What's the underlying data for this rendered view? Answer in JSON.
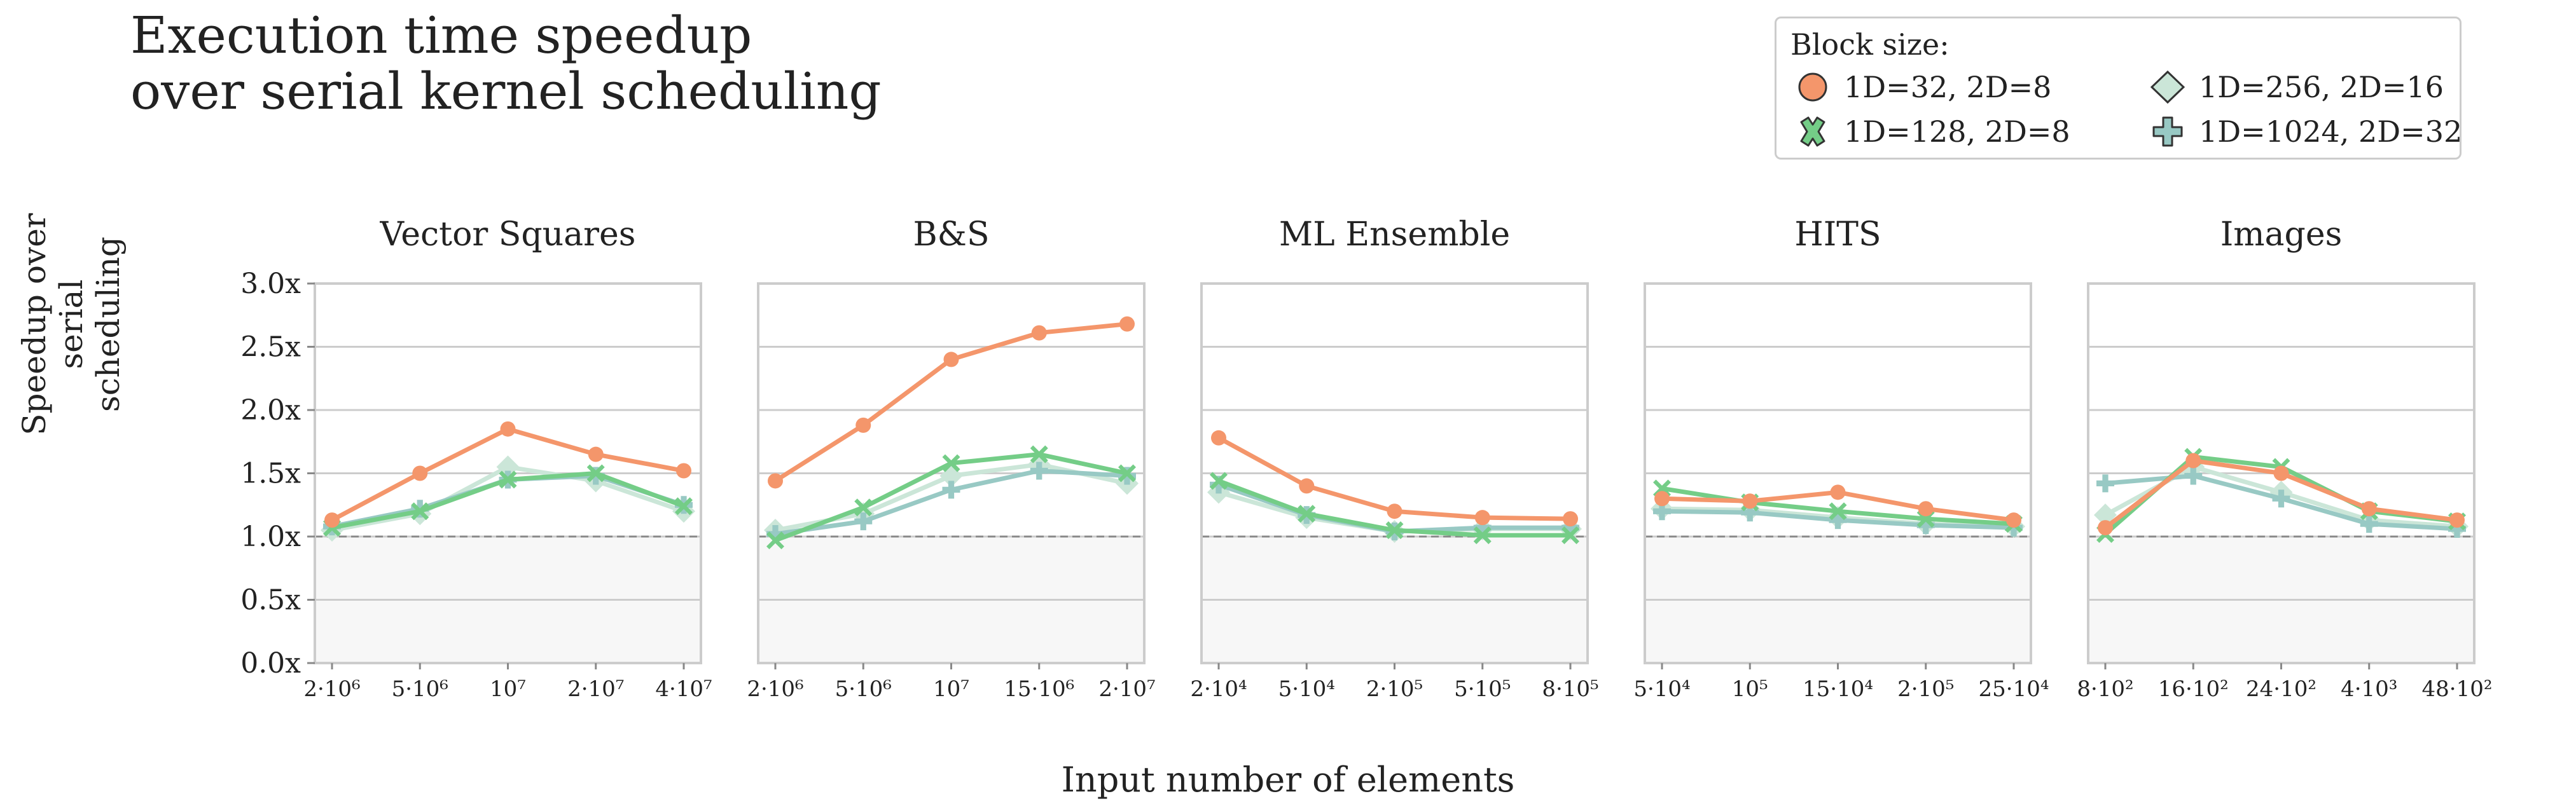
{
  "figure": {
    "title_lines": [
      "Execution time speedup",
      "over serial kernel scheduling"
    ],
    "ylabel_lines": [
      "Speedup over",
      "serial scheduling"
    ],
    "xlabel": "Input number of elements",
    "legend_title": "Block size:"
  },
  "chart_data": [
    {
      "type": "line",
      "title": "Vector Squares",
      "categories": [
        "2·10⁶",
        "5·10⁶",
        "10⁷",
        "2·10⁷",
        "4·10⁷"
      ],
      "ylim": [
        0,
        3
      ],
      "yticks": [
        "0.0x",
        "0.5x",
        "1.0x",
        "1.5x",
        "2.0x",
        "2.5x",
        "3.0x"
      ],
      "reference_line": 1.0,
      "series": [
        {
          "name": "1D=32, 2D=8",
          "values": [
            1.13,
            1.5,
            1.85,
            1.65,
            1.52
          ]
        },
        {
          "name": "1D=128, 2D=8",
          "values": [
            1.07,
            1.2,
            1.45,
            1.5,
            1.24
          ]
        },
        {
          "name": "1D=256, 2D=16",
          "values": [
            1.05,
            1.18,
            1.55,
            1.44,
            1.2
          ]
        },
        {
          "name": "1D=1024, 2D=32",
          "values": [
            1.08,
            1.22,
            1.45,
            1.48,
            1.25
          ]
        }
      ]
    },
    {
      "type": "line",
      "title": "B&S",
      "categories": [
        "2·10⁶",
        "5·10⁶",
        "10⁷",
        "15·10⁶",
        "2·10⁷"
      ],
      "ylim": [
        0,
        3
      ],
      "yticks": [
        "0.0x",
        "0.5x",
        "1.0x",
        "1.5x",
        "2.0x",
        "2.5x",
        "3.0x"
      ],
      "reference_line": 1.0,
      "series": [
        {
          "name": "1D=32, 2D=8",
          "values": [
            1.44,
            1.88,
            2.4,
            2.61,
            2.68
          ]
        },
        {
          "name": "1D=128, 2D=8",
          "values": [
            0.97,
            1.23,
            1.58,
            1.65,
            1.5
          ]
        },
        {
          "name": "1D=256, 2D=16",
          "values": [
            1.05,
            1.18,
            1.48,
            1.57,
            1.42
          ]
        },
        {
          "name": "1D=1024, 2D=32",
          "values": [
            1.02,
            1.12,
            1.37,
            1.52,
            1.48
          ]
        }
      ]
    },
    {
      "type": "line",
      "title": "ML Ensemble",
      "categories": [
        "2·10⁴",
        "5·10⁴",
        "2·10⁵",
        "5·10⁵",
        "8·10⁵"
      ],
      "ylim": [
        0,
        3
      ],
      "yticks": [
        "0.0x",
        "0.5x",
        "1.0x",
        "1.5x",
        "2.0x",
        "2.5x",
        "3.0x"
      ],
      "reference_line": 1.0,
      "series": [
        {
          "name": "1D=32, 2D=8",
          "values": [
            1.78,
            1.4,
            1.2,
            1.15,
            1.14
          ]
        },
        {
          "name": "1D=128, 2D=8",
          "values": [
            1.44,
            1.18,
            1.05,
            1.01,
            1.01
          ]
        },
        {
          "name": "1D=256, 2D=16",
          "values": [
            1.35,
            1.15,
            1.04,
            1.06,
            1.06
          ]
        },
        {
          "name": "1D=1024, 2D=32",
          "values": [
            1.41,
            1.17,
            1.04,
            1.07,
            1.07
          ]
        }
      ]
    },
    {
      "type": "line",
      "title": "HITS",
      "categories": [
        "5·10⁴",
        "10⁵",
        "15·10⁴",
        "2·10⁵",
        "25·10⁴"
      ],
      "ylim": [
        0,
        3
      ],
      "yticks": [
        "0.0x",
        "0.5x",
        "1.0x",
        "1.5x",
        "2.0x",
        "2.5x",
        "3.0x"
      ],
      "reference_line": 1.0,
      "series": [
        {
          "name": "1D=32, 2D=8",
          "values": [
            1.3,
            1.28,
            1.35,
            1.22,
            1.13
          ]
        },
        {
          "name": "1D=128, 2D=8",
          "values": [
            1.38,
            1.27,
            1.2,
            1.14,
            1.1
          ]
        },
        {
          "name": "1D=256, 2D=16",
          "values": [
            1.22,
            1.21,
            1.15,
            1.1,
            1.08
          ]
        },
        {
          "name": "1D=1024, 2D=32",
          "values": [
            1.2,
            1.19,
            1.13,
            1.09,
            1.07
          ]
        }
      ]
    },
    {
      "type": "line",
      "title": "Images",
      "categories": [
        "8·10²",
        "16·10²",
        "24·10²",
        "4·10³",
        "48·10²"
      ],
      "ylim": [
        0,
        3
      ],
      "yticks": [
        "0.0x",
        "0.5x",
        "1.0x",
        "1.5x",
        "2.0x",
        "2.5x",
        "3.0x"
      ],
      "reference_line": 1.0,
      "series": [
        {
          "name": "1D=32, 2D=8",
          "values": [
            1.07,
            1.6,
            1.5,
            1.22,
            1.13
          ]
        },
        {
          "name": "1D=128, 2D=8",
          "values": [
            1.02,
            1.63,
            1.55,
            1.2,
            1.12
          ]
        },
        {
          "name": "1D=256, 2D=16",
          "values": [
            1.17,
            1.55,
            1.35,
            1.13,
            1.08
          ]
        },
        {
          "name": "1D=1024, 2D=32",
          "values": [
            1.42,
            1.48,
            1.3,
            1.1,
            1.06
          ]
        }
      ]
    }
  ],
  "legend": [
    {
      "label": "1D=32, 2D=8",
      "color": "#f4966b",
      "marker": "circle"
    },
    {
      "label": "1D=256, 2D=16",
      "color": "#cbe6d8",
      "marker": "diamond"
    },
    {
      "label": "1D=128, 2D=8",
      "color": "#74cd87",
      "marker": "x"
    },
    {
      "label": "1D=1024, 2D=32",
      "color": "#98c9c4",
      "marker": "plus"
    }
  ],
  "colors": {
    "1D=32, 2D=8": "#f4966b",
    "1D=128, 2D=8": "#74cd87",
    "1D=256, 2D=16": "#cbe6d8",
    "1D=1024, 2D=32": "#98c9c4",
    "grid": "#cccccc",
    "below_one_fill": "#f7f7f7"
  }
}
